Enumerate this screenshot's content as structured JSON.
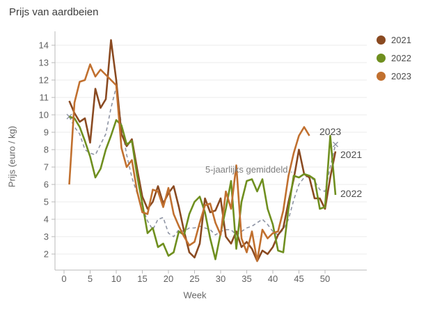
{
  "title": "Prijs van aardbeien",
  "colors": {
    "background": "#ffffff",
    "grid": "#ebebeb",
    "axis": "#b8b8b8",
    "tick_text": "#616161",
    "axis_title_text": "#666666",
    "annotation_text": "#7f7f7f",
    "end_label_text": "#4d4d4d"
  },
  "legend": {
    "items": [
      {
        "label": "2021",
        "color": "#8a4a21"
      },
      {
        "label": "2022",
        "color": "#6f8f1f"
      },
      {
        "label": "2023",
        "color": "#c1702f"
      }
    ]
  },
  "annotations": {
    "average_label": "5-jaarlijks gemiddeld...",
    "series_end_labels": {
      "y2023": "2023",
      "y2021": "2021",
      "y2022": "2022"
    }
  },
  "chart_data": {
    "type": "line",
    "title": "Prijs van aardbeien",
    "x_label": "Week",
    "y_label": "Prijs (euro / kg)",
    "x_ticks": [
      0,
      5,
      10,
      15,
      20,
      25,
      30,
      35,
      40,
      45,
      50
    ],
    "y_ticks": [
      2,
      3,
      4,
      5,
      6,
      7,
      8,
      9,
      10,
      11,
      12,
      13,
      14
    ],
    "x_range": [
      0,
      58
    ],
    "y_range": [
      1.1,
      14.8
    ],
    "grid": "horizontal-only",
    "legend_position": "top-right",
    "x": [
      1,
      2,
      3,
      4,
      5,
      6,
      7,
      8,
      9,
      10,
      11,
      12,
      13,
      14,
      15,
      16,
      17,
      18,
      19,
      20,
      21,
      22,
      23,
      24,
      25,
      26,
      27,
      28,
      29,
      30,
      31,
      32,
      33,
      34,
      35,
      36,
      37,
      38,
      39,
      40,
      41,
      42,
      43,
      44,
      45,
      46,
      47,
      48,
      49,
      50,
      51,
      52
    ],
    "series": [
      {
        "name": "2021",
        "color": "#8a4a21",
        "style": "solid",
        "values": [
          10.8,
          10.1,
          9.6,
          9.8,
          8.4,
          11.5,
          10.4,
          10.9,
          14.3,
          12.0,
          8.9,
          8.2,
          8.6,
          6.9,
          5.3,
          4.6,
          5.0,
          5.9,
          4.9,
          5.5,
          5.9,
          4.7,
          3.3,
          2.1,
          1.8,
          2.6,
          5.2,
          4.4,
          4.5,
          5.2,
          3.0,
          2.6,
          3.3,
          2.4,
          2.7,
          2.3,
          1.6,
          2.2,
          2.0,
          2.4,
          3.1,
          3.5,
          5.0,
          6.3,
          8.0,
          6.6,
          6.4,
          5.2,
          5.2,
          4.6,
          6.4,
          7.9
        ]
      },
      {
        "name": "2022",
        "color": "#6f8f1f",
        "style": "solid",
        "values": [
          9.9,
          9.8,
          9.3,
          8.5,
          7.6,
          6.4,
          6.9,
          8.0,
          8.8,
          9.7,
          9.4,
          8.3,
          8.5,
          6.5,
          4.9,
          3.2,
          3.5,
          2.4,
          2.6,
          1.9,
          2.1,
          3.3,
          3.1,
          4.3,
          5.0,
          5.3,
          4.4,
          2.9,
          1.7,
          3.2,
          4.6,
          6.2,
          2.3,
          5.0,
          6.2,
          6.3,
          5.6,
          6.3,
          4.6,
          3.7,
          2.2,
          2.1,
          4.6,
          6.5,
          6.4,
          6.6,
          6.5,
          6.3,
          4.6,
          4.7,
          8.8,
          5.4
        ]
      },
      {
        "name": "2023",
        "color": "#c1702f",
        "style": "solid",
        "values": [
          6.0,
          10.7,
          11.9,
          12.0,
          12.9,
          12.2,
          12.6,
          12.3,
          12.0,
          11.7,
          8.1,
          7.0,
          7.4,
          5.6,
          4.4,
          4.3,
          5.7,
          5.6,
          4.7,
          5.8,
          4.3,
          3.6,
          3.0,
          2.5,
          2.7,
          3.8,
          4.8,
          4.9,
          3.8,
          3.1,
          5.6,
          4.6,
          7.1,
          2.9,
          2.1,
          3.3,
          1.6,
          3.4,
          2.9,
          3.2,
          3.3,
          4.5,
          6.5,
          7.8,
          8.8,
          9.3,
          8.8,
          null,
          null,
          null,
          null,
          null
        ]
      },
      {
        "name": "5-jaarlijks gemiddeld...",
        "color": "#8e94a4",
        "style": "dashed",
        "end_markers": "x",
        "values": [
          9.9,
          9.3,
          8.9,
          8.0,
          7.8,
          7.7,
          8.3,
          8.9,
          10.4,
          11.6,
          9.4,
          7.7,
          6.4,
          5.5,
          4.7,
          3.9,
          3.4,
          4.0,
          4.1,
          3.2,
          3.0,
          3.4,
          3.3,
          3.5,
          3.5,
          3.6,
          3.5,
          3.4,
          3.1,
          3.3,
          3.4,
          3.4,
          3.1,
          3.3,
          3.5,
          3.6,
          3.8,
          4.0,
          3.7,
          3.3,
          3.1,
          3.4,
          4.0,
          5.1,
          6.0,
          6.4,
          6.5,
          6.2,
          5.7,
          5.6,
          7.0,
          8.3
        ]
      }
    ]
  }
}
